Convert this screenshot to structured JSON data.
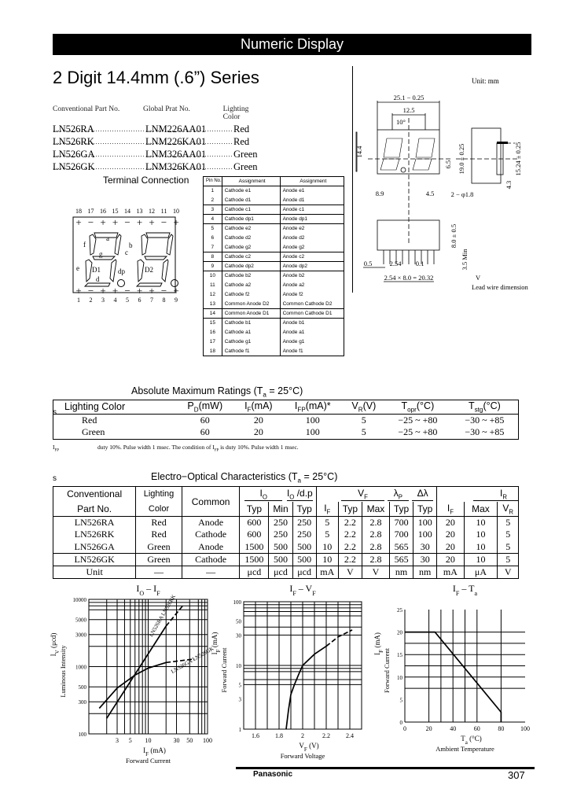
{
  "header": {
    "banner": "Numeric Display",
    "title": "2 Digit 14.4mm (.6”) Series",
    "unit": "Unit: mm"
  },
  "parts": {
    "headers": [
      "Conventional Part No.",
      "Global Prat No.",
      "Lighting Color"
    ],
    "rows": [
      [
        "LN526RA",
        "LNM226AA01",
        "Red"
      ],
      [
        "LN526RK",
        "LNM226KA01",
        "Red"
      ],
      [
        "LN526GA",
        "LNM326AA01",
        "Green"
      ],
      [
        "LN526GK",
        "LNM326KA01",
        "Green"
      ]
    ]
  },
  "terminal": {
    "title": "Terminal Connection",
    "headers": [
      "Pin No.",
      "Assignment",
      "Assignment"
    ],
    "rows": [
      [
        "1",
        "Cathode e1",
        "Anode e1"
      ],
      [
        "2",
        "Cathode d1",
        "Anode d1"
      ],
      [
        "3",
        "Cathode c1",
        "Anode c1"
      ],
      [
        "4",
        "Cathode dp1",
        "Anode dp1"
      ],
      [
        "5",
        "Cathode e2",
        "Anode e2"
      ],
      [
        "6",
        "Cathode d2",
        "Anode d2"
      ],
      [
        "7",
        "Cathode g2",
        "Anode g2"
      ],
      [
        "8",
        "Cathode c2",
        "Anode c2"
      ],
      [
        "9",
        "Cathode dp2",
        "Anode dp2"
      ],
      [
        "10",
        "Cathode b2",
        "Anode b2"
      ],
      [
        "11",
        "Cathode a2",
        "Anode a2"
      ],
      [
        "12",
        "Cathode f2",
        "Anode f2"
      ],
      [
        "13",
        "Common Anode D2",
        "Common Cathode D2"
      ],
      [
        "14",
        "Common Anode D1",
        "Common Cathode D1"
      ],
      [
        "15",
        "Cathode b1",
        "Anode b1"
      ],
      [
        "16",
        "Cathode a1",
        "Anode a1"
      ],
      [
        "17",
        "Cathode g1",
        "Anode g1"
      ],
      [
        "18",
        "Cathode f1",
        "Anode f1"
      ]
    ],
    "diagram": {
      "top_pins": [
        "18",
        "17",
        "16",
        "15",
        "14",
        "13",
        "12",
        "11",
        "10"
      ],
      "bottom_pins": [
        "1",
        "2",
        "3",
        "4",
        "5",
        "6",
        "7",
        "8",
        "9"
      ],
      "top_polarity": [
        "+",
        "−",
        "+",
        "+",
        "−",
        "+",
        "+",
        "−",
        "+"
      ],
      "bottom_polarity": [
        "+",
        "−",
        "+",
        "+",
        "−",
        "+",
        "+",
        "−",
        "+"
      ],
      "segments": {
        "a": "a",
        "b": "b",
        "c": "c",
        "d": "d",
        "e": "e",
        "f": "f",
        "g": "g",
        "dp": "dp"
      },
      "digits": [
        "D1",
        "D2"
      ]
    }
  },
  "dimensions": {
    "width": "25.1 − 0.25",
    "pitch": "12.5",
    "slant": "10°",
    "height": "14.4",
    "seg_h": "6.5",
    "body_h": "19.0 ± 0.25",
    "pin_row": "15.24 ± 0.25",
    "depth": "4.3",
    "left": "8.9",
    "right": "4.5",
    "holes": "2 − φ1.8",
    "thick": "8.0 ± 0.5",
    "lead_len": "3.5 Min",
    "lead_w": "0.5",
    "lead_pitch": "2.54",
    "lead_t": "0.1",
    "span": "2.54 × 8.0 = 20.32",
    "note_mark": "V",
    "note": "Lead wire dimension"
  },
  "abs_max": {
    "marker": "s",
    "title": "Absolute Maximum Ratings (T",
    "title_sub": "a",
    "title_end": " = 25°C)",
    "headers": [
      "Lighting Color",
      "P<sub>D</sub>(mW)",
      "I<sub>F</sub>(mA)",
      "I<sub>FP</sub>(mA)*",
      "V<sub>R</sub>(V)",
      "T<sub>opr</sub>(°C)",
      "T<sub>stg</sub>(°C)"
    ],
    "rows": [
      [
        "Red",
        "60",
        "20",
        "100",
        "5",
        "−25 ~ +80",
        "−30 ~ +85"
      ],
      [
        "Green",
        "60",
        "20",
        "100",
        "5",
        "−25 ~ +80",
        "−30 ~ +85"
      ]
    ],
    "footnote_label": "I<sub>FP</sub>",
    "footnote": "duty 10%. Pulse width 1 msec. The condition of I<sub>FP</sub> is duty 10%. Pulse width 1 msec."
  },
  "eoc": {
    "marker": "s",
    "title": "Electro−Optical Characteristics (T",
    "title_sub": "a",
    "title_end": " = 25°C)",
    "h": {
      "part1": "Conventional",
      "part2": "Part No.",
      "color1": "Lighting",
      "color2": "Color",
      "common": "Common",
      "io": "I<sub>O</sub>",
      "iodp": "I<sub>O</sub> /d.p",
      "if": "I<sub>F</sub>",
      "vf": "V<sub>F</sub>",
      "lp": "λ<sub>P</sub>",
      "dl": "Δλ",
      "ir": "I<sub>R</sub>",
      "typ": "Typ",
      "min": "Min",
      "max": "Max",
      "vr": "V<sub>R</sub>"
    },
    "rows": [
      [
        "LN526RA",
        "Red",
        "Anode",
        "600",
        "250",
        "250",
        "5",
        "2.2",
        "2.8",
        "700",
        "100",
        "20",
        "10",
        "5"
      ],
      [
        "LN526RK",
        "Red",
        "Cathode",
        "600",
        "250",
        "250",
        "5",
        "2.2",
        "2.8",
        "700",
        "100",
        "20",
        "10",
        "5"
      ],
      [
        "LN526GA",
        "Green",
        "Anode",
        "1500",
        "500",
        "500",
        "10",
        "2.2",
        "2.8",
        "565",
        "30",
        "20",
        "10",
        "5"
      ],
      [
        "LN526GK",
        "Green",
        "Cathode",
        "1500",
        "500",
        "500",
        "10",
        "2.2",
        "2.8",
        "565",
        "30",
        "20",
        "10",
        "5"
      ],
      [
        "Unit",
        "—",
        "—",
        "μcd",
        "μcd",
        "μcd",
        "mA",
        "V",
        "V",
        "nm",
        "nm",
        "mA",
        "μA",
        "V"
      ]
    ]
  },
  "chart_data": [
    {
      "type": "line",
      "title": "I<tspan baseline-shift='sub' font-size='8'>O</tspan> – I<tspan baseline-shift='sub' font-size='8'>F</tspan>",
      "ylabel": "I<tspan baseline-shift='sub' font-size='7'>V</tspan> (μcd)",
      "ylabel2": "Luminous Intensity",
      "xlabel": "I<tspan baseline-shift='sub' font-size='7'>F</tspan> (mA)",
      "xlabel2": "Forward Current",
      "xscale": "log",
      "yscale": "log",
      "xlim": [
        1,
        100
      ],
      "ylim": [
        100,
        10000
      ],
      "xticks": [
        3,
        5,
        10,
        30,
        50,
        100
      ],
      "yticks": [
        100,
        300,
        500,
        1000,
        3000,
        5000,
        10000
      ],
      "xgrid": [
        2,
        3,
        4,
        5,
        6,
        7,
        8,
        9,
        10,
        20,
        30,
        50,
        70,
        80,
        90
      ],
      "ygrid": [
        200,
        300,
        500,
        1000,
        2000,
        3000,
        5000,
        7000,
        8000,
        9000
      ],
      "series": [
        {
          "name": "LN526RA LN526RK",
          "solid": [
            [
              2,
              170
            ],
            [
              20,
              4000
            ]
          ],
          "dashed": [
            [
              20,
              4000
            ],
            [
              38,
              8000
            ]
          ]
        },
        {
          "name": "LN526GA LN526GK",
          "solid": [
            [
              1.5,
              240
            ],
            [
              3,
              480
            ],
            [
              6,
              750
            ],
            [
              10,
              950
            ],
            [
              20,
              1150
            ]
          ],
          "dashed": [
            [
              20,
              1150
            ],
            [
              60,
              1300
            ]
          ]
        }
      ]
    },
    {
      "type": "line",
      "title": "I<tspan baseline-shift='sub' font-size='8'>F</tspan> – V<tspan baseline-shift='sub' font-size='8'>F</tspan>",
      "ylabel": "I<tspan baseline-shift='sub' font-size='7'>F</tspan> (mA)",
      "ylabel2": "Forward Current",
      "xlabel": "V<tspan baseline-shift='sub' font-size='7'>F</tspan> (V)",
      "xlabel2": "Forward Voltage",
      "xscale": "linear",
      "yscale": "log",
      "xlim": [
        1.5,
        2.5
      ],
      "ylim": [
        1,
        100
      ],
      "xticks": [
        1.6,
        1.8,
        2.0,
        2.2,
        2.4
      ],
      "yticks": [
        1,
        3,
        5,
        10,
        30,
        50,
        100
      ],
      "xgrid": [
        1.6,
        1.7,
        1.8,
        1.9,
        2.0,
        2.1,
        2.2,
        2.3,
        2.4
      ],
      "ygrid": [
        5,
        6,
        8,
        9,
        10,
        30,
        40,
        60,
        70,
        80,
        90
      ],
      "series": [
        {
          "solid": [
            [
              1.86,
              1
            ],
            [
              1.88,
              2
            ],
            [
              1.9,
              3.5
            ],
            [
              1.93,
              5
            ],
            [
              1.97,
              7.5
            ],
            [
              2.0,
              10
            ],
            [
              2.1,
              15
            ],
            [
              2.2,
              20
            ]
          ],
          "dashed": [
            [
              2.2,
              20
            ],
            [
              2.3,
              28
            ],
            [
              2.42,
              36
            ]
          ]
        }
      ]
    },
    {
      "type": "line",
      "title": "I<tspan baseline-shift='sub' font-size='8'>F</tspan> – T<tspan baseline-shift='sub' font-size='8'>a</tspan>",
      "ylabel": "I<tspan baseline-shift='sub' font-size='7'>F</tspan> (mA)",
      "ylabel2": "Forward Current",
      "xlabel": "T<tspan baseline-shift='sub' font-size='7'>a</tspan> (°C)",
      "xlabel2": "Ambient Temperature",
      "xscale": "linear",
      "yscale": "linear",
      "xlim": [
        0,
        100
      ],
      "ylim": [
        0,
        25
      ],
      "xticks": [
        0,
        20,
        40,
        60,
        80,
        100
      ],
      "yticks": [
        0,
        5,
        10,
        15,
        20,
        25
      ],
      "xgrid": [
        20,
        30,
        40,
        50,
        60,
        80
      ],
      "ygrid": [
        7.5,
        10,
        12.5,
        15,
        17.5,
        20
      ],
      "series": [
        {
          "solid": [
            [
              0,
              20
            ],
            [
              25,
              20
            ],
            [
              80,
              2.2
            ],
            [
              80,
              0
            ]
          ],
          "dashed": []
        }
      ]
    }
  ],
  "footer": {
    "brand": "Panasonic",
    "page": "307"
  }
}
